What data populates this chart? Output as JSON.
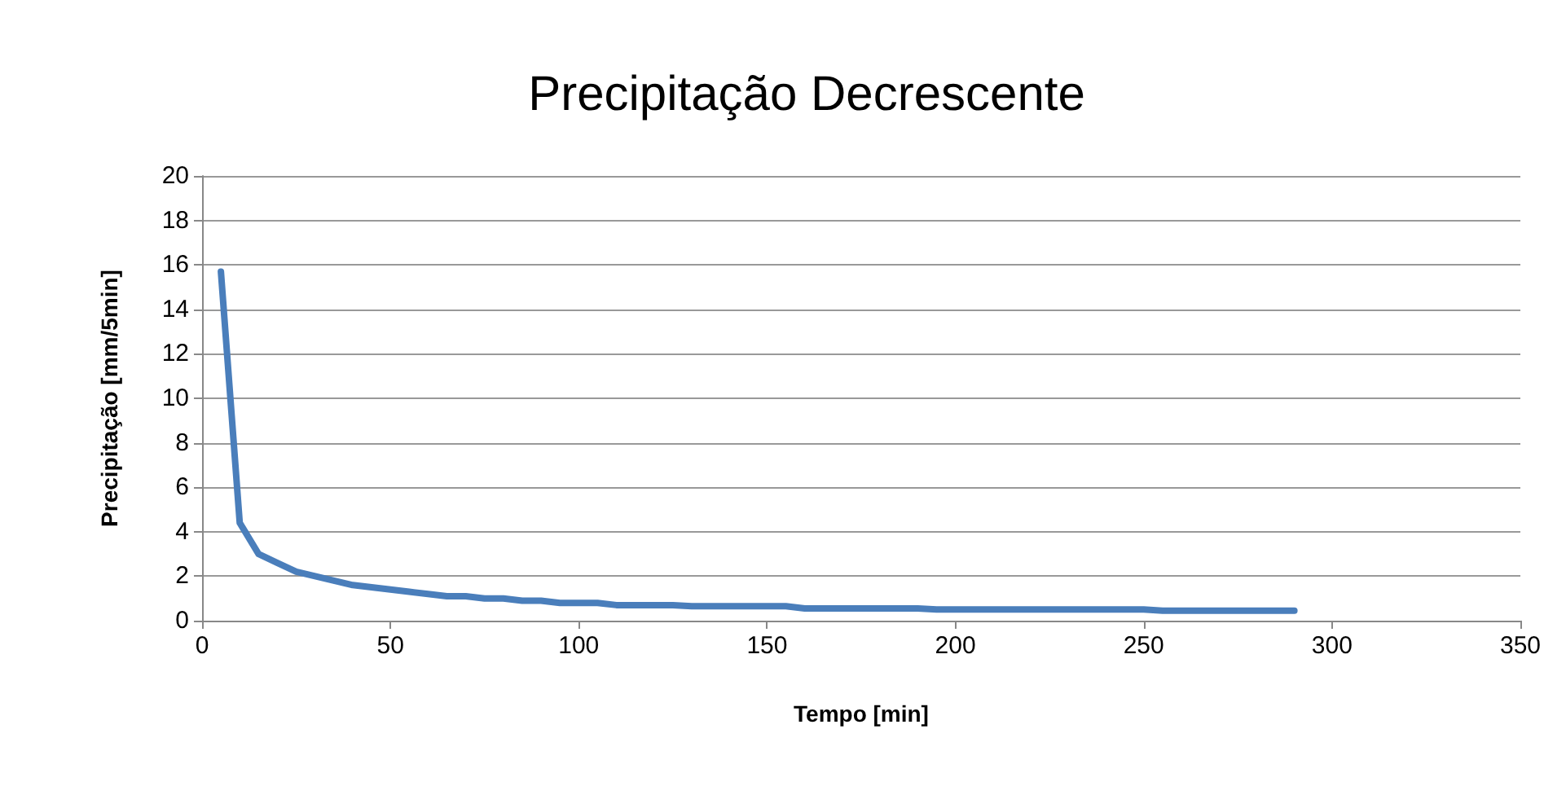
{
  "chart_data": {
    "type": "line",
    "title": "Precipitação Decrescente",
    "xlabel": "Tempo [min]",
    "ylabel": "Precipitação [mm/5min]",
    "x": [
      5,
      10,
      15,
      20,
      25,
      30,
      35,
      40,
      45,
      50,
      55,
      60,
      65,
      70,
      75,
      80,
      85,
      90,
      95,
      100,
      105,
      110,
      115,
      120,
      125,
      130,
      135,
      140,
      145,
      150,
      155,
      160,
      165,
      170,
      175,
      180,
      185,
      190,
      195,
      200,
      205,
      210,
      215,
      220,
      225,
      230,
      235,
      240,
      245,
      250,
      255,
      260,
      265,
      270,
      275,
      280,
      285,
      290
    ],
    "series": [
      {
        "color": "#4a7ebb",
        "values": [
          15.7,
          4.4,
          3.0,
          2.6,
          2.2,
          2.0,
          1.8,
          1.6,
          1.5,
          1.4,
          1.3,
          1.2,
          1.1,
          1.1,
          1.0,
          1.0,
          0.9,
          0.9,
          0.8,
          0.8,
          0.8,
          0.7,
          0.7,
          0.7,
          0.7,
          0.65,
          0.65,
          0.65,
          0.65,
          0.65,
          0.65,
          0.55,
          0.55,
          0.55,
          0.55,
          0.55,
          0.55,
          0.55,
          0.5,
          0.5,
          0.5,
          0.5,
          0.5,
          0.5,
          0.5,
          0.5,
          0.5,
          0.5,
          0.5,
          0.5,
          0.45,
          0.45,
          0.45,
          0.45,
          0.45,
          0.45,
          0.45,
          0.45
        ]
      }
    ],
    "xlim": [
      0,
      350
    ],
    "xticks": [
      0,
      50,
      100,
      150,
      200,
      250,
      300,
      350
    ],
    "ylim": [
      0,
      20
    ],
    "yticks": [
      0,
      2,
      4,
      6,
      8,
      10,
      12,
      14,
      16,
      18,
      20
    ],
    "grid": "y",
    "marker": "none",
    "line_style": "solid"
  }
}
